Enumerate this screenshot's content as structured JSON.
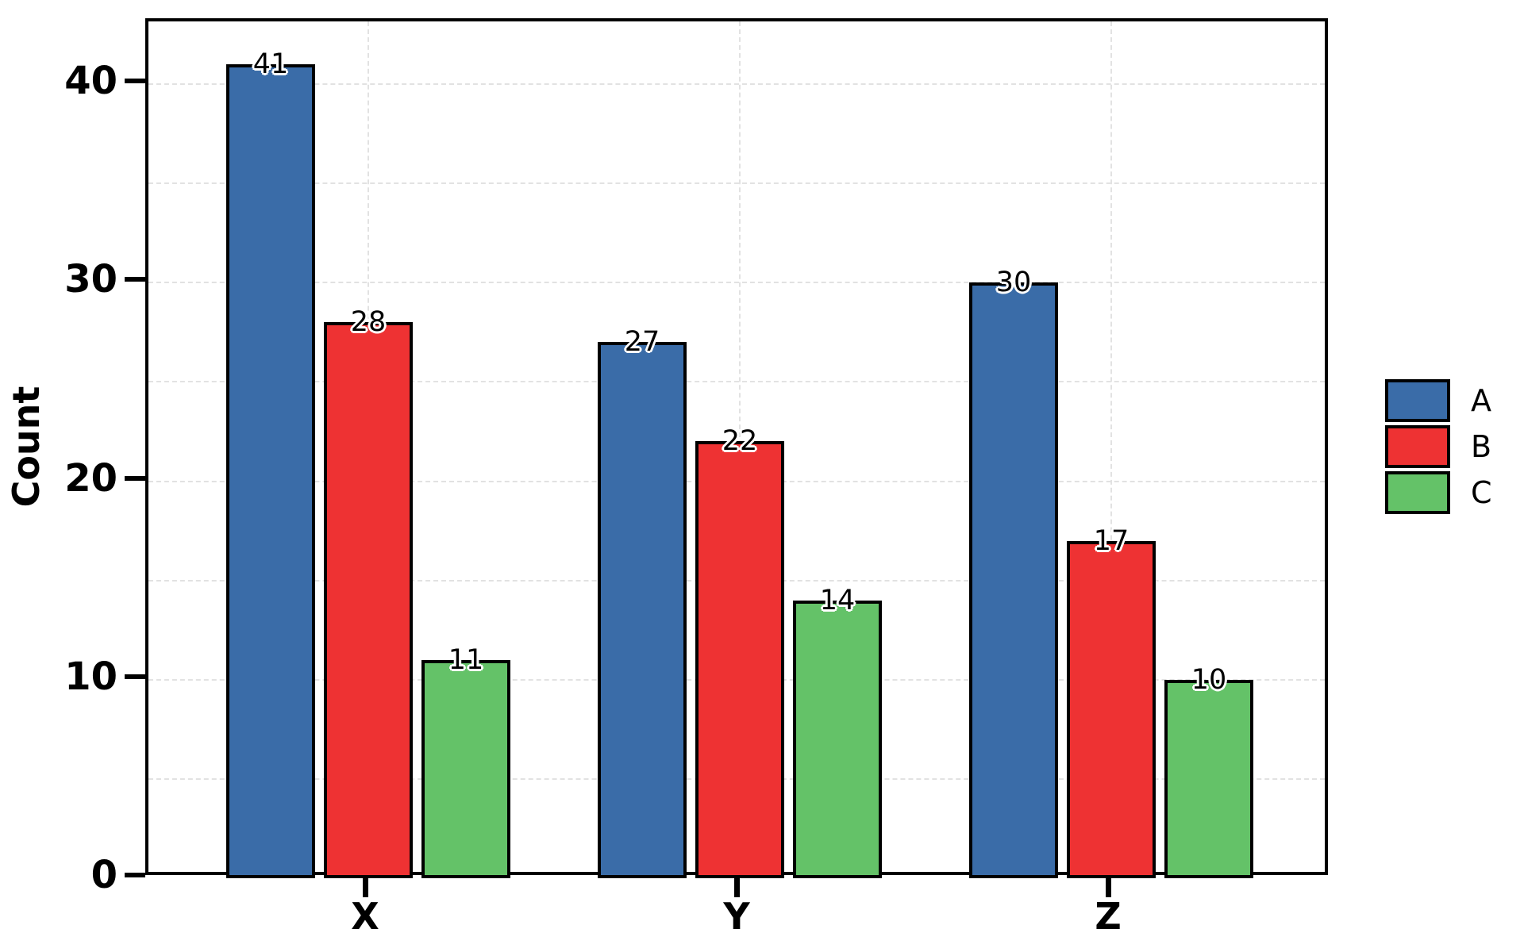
{
  "chart_data": {
    "type": "bar",
    "title": "",
    "xlabel": "",
    "ylabel": "Count",
    "categories": [
      "X",
      "Y",
      "Z"
    ],
    "series": [
      {
        "name": "A",
        "color": "#3a6ca8",
        "values": [
          41,
          27,
          30
        ]
      },
      {
        "name": "B",
        "color": "#ee3233",
        "values": [
          28,
          22,
          17
        ]
      },
      {
        "name": "C",
        "color": "#64c268",
        "values": [
          11,
          14,
          10
        ]
      }
    ],
    "yticks": [
      0,
      10,
      20,
      30,
      40
    ],
    "ytick_minor_step": 5,
    "ylim": [
      0,
      43.16
    ],
    "grid": true,
    "legend_position": "right",
    "value_labels_shown": true,
    "colors": {
      "bar_edge": "#000000",
      "axis": "#000000",
      "grid": "#e2e2e2",
      "background": "#ffffff",
      "value_label_text": "#000000",
      "value_label_halo": "#ffffff"
    }
  }
}
